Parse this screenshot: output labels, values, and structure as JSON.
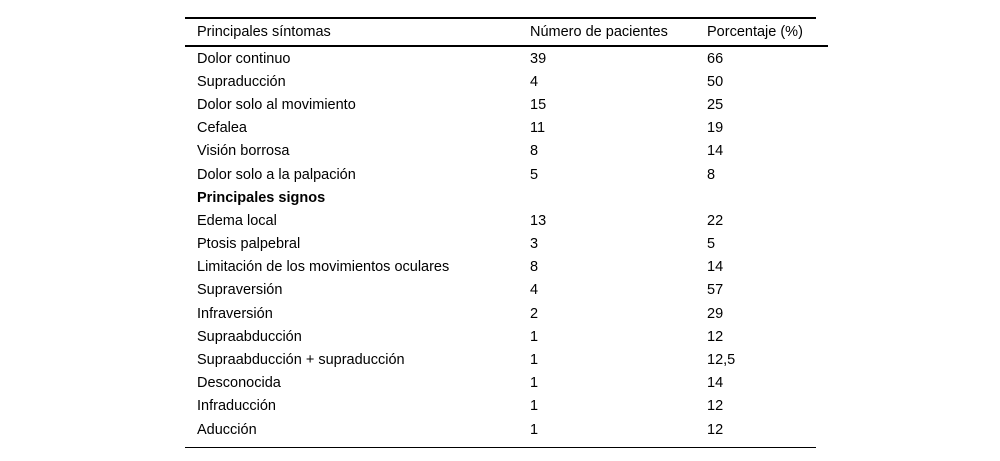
{
  "table": {
    "background": "#ffffff",
    "text_color": "#000000",
    "rule_color": "#000000",
    "columns": {
      "symptom": "Principales síntomas",
      "patients": "Número de pacientes",
      "percentage": "Porcentaje (%)"
    },
    "rows": [
      {
        "label": "Dolor continuo",
        "patients": "39",
        "percentage": "66"
      },
      {
        "label": "Supraducción",
        "patients": "4",
        "percentage": "50"
      },
      {
        "label": "Dolor solo al movimiento",
        "patients": "15",
        "percentage": "25"
      },
      {
        "label": "Cefalea",
        "patients": "11",
        "percentage": "19"
      },
      {
        "label": "Visión borrosa",
        "patients": "8",
        "percentage": "14"
      },
      {
        "label": "Dolor solo a la palpación",
        "patients": "5",
        "percentage": "8"
      },
      {
        "label": "Principales signos",
        "patients": "",
        "percentage": ""
      },
      {
        "label": "Edema local",
        "patients": "13",
        "percentage": "22"
      },
      {
        "label": "Ptosis palpebral",
        "patients": "3",
        "percentage": "5"
      },
      {
        "label": "Limitación de los movimientos oculares",
        "patients": "8",
        "percentage": "14"
      },
      {
        "label": "Supraversión",
        "patients": "4",
        "percentage": "57"
      },
      {
        "label": "Infraversión",
        "patients": "2",
        "percentage": "29"
      },
      {
        "label": "Supraabducción",
        "patients": "1",
        "percentage": "12"
      },
      {
        "label": "Supraabducción + supraducción",
        "patients": "1",
        "percentage": "12,5"
      },
      {
        "label": "Desconocida",
        "patients": "1",
        "percentage": "14"
      },
      {
        "label": "Infraducción",
        "patients": "1",
        "percentage": "12"
      },
      {
        "label": "Aducción",
        "patients": "1",
        "percentage": "12"
      }
    ]
  }
}
